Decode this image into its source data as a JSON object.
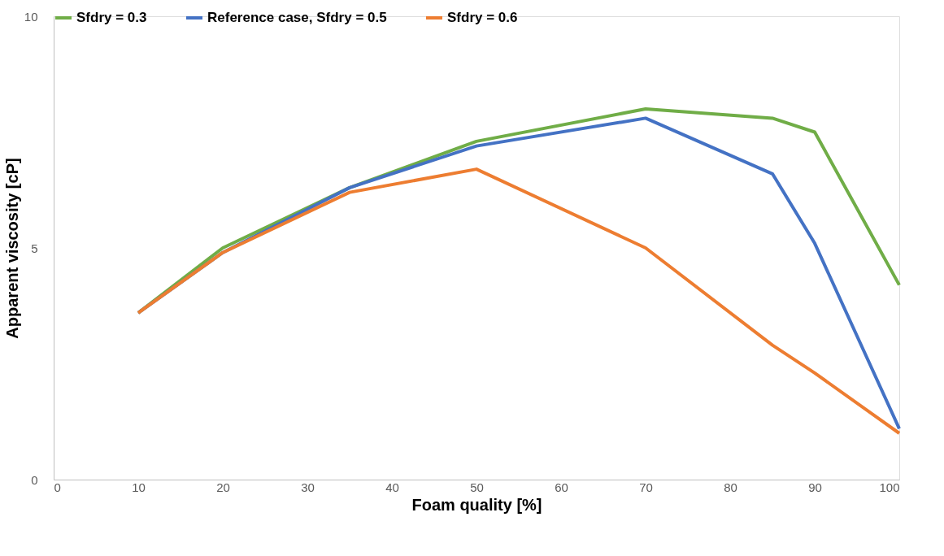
{
  "chart_data": {
    "type": "line",
    "xlabel": "Foam quality [%]",
    "ylabel": "Apparent viscosity [cP]",
    "x": [
      10,
      20,
      35,
      50,
      70,
      85,
      90,
      100
    ],
    "series": [
      {
        "name": "Sfdry = 0.3",
        "color": "#70ad47",
        "values": [
          3.6,
          5.0,
          6.3,
          7.3,
          8.0,
          7.8,
          7.5,
          4.2
        ]
      },
      {
        "name": "Reference case, Sfdry = 0.5",
        "color": "#4472c4",
        "values": [
          3.6,
          4.9,
          6.3,
          7.2,
          7.8,
          6.6,
          5.1,
          1.1
        ]
      },
      {
        "name": "Sfdry = 0.6",
        "color": "#ed7d31",
        "values": [
          3.6,
          4.9,
          6.2,
          6.7,
          5.0,
          2.9,
          2.3,
          1.0
        ]
      }
    ],
    "xlim": [
      0,
      100
    ],
    "xticks": [
      0,
      10,
      20,
      30,
      40,
      50,
      60,
      70,
      80,
      90,
      100
    ],
    "ylim": [
      0,
      10
    ],
    "yticks": [
      0,
      5,
      10
    ],
    "grid": false,
    "legend": "top",
    "marker": "none",
    "line_style": "solid"
  }
}
